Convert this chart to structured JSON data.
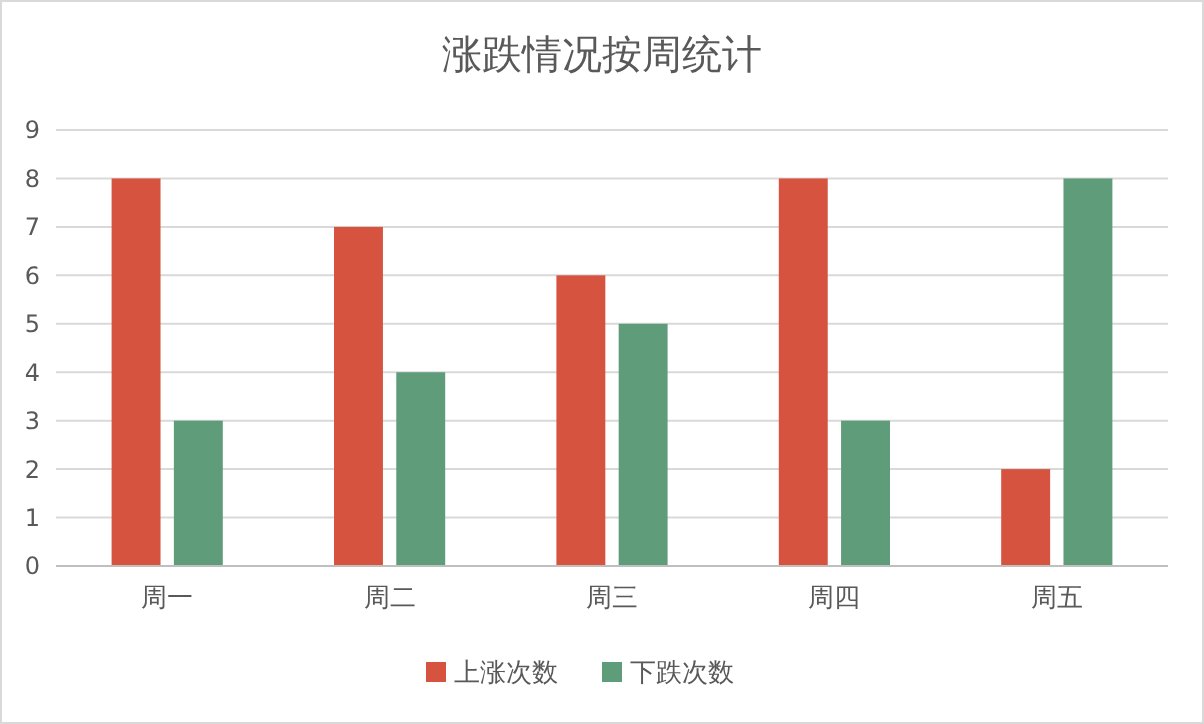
{
  "chart_data": {
    "type": "bar",
    "title": "涨跌情况按周统计",
    "categories": [
      "周一",
      "周二",
      "周三",
      "周四",
      "周五"
    ],
    "series": [
      {
        "name": "上涨次数",
        "color": "#d5533f",
        "values": [
          8,
          7,
          6,
          8,
          2
        ]
      },
      {
        "name": "下跌次数",
        "color": "#5f9d7a",
        "values": [
          3,
          4,
          5,
          3,
          8
        ]
      }
    ],
    "ylim": [
      0,
      9
    ],
    "yticks": [
      0,
      1,
      2,
      3,
      4,
      5,
      6,
      7,
      8,
      9
    ],
    "grid": "y",
    "legend": "bottom"
  }
}
